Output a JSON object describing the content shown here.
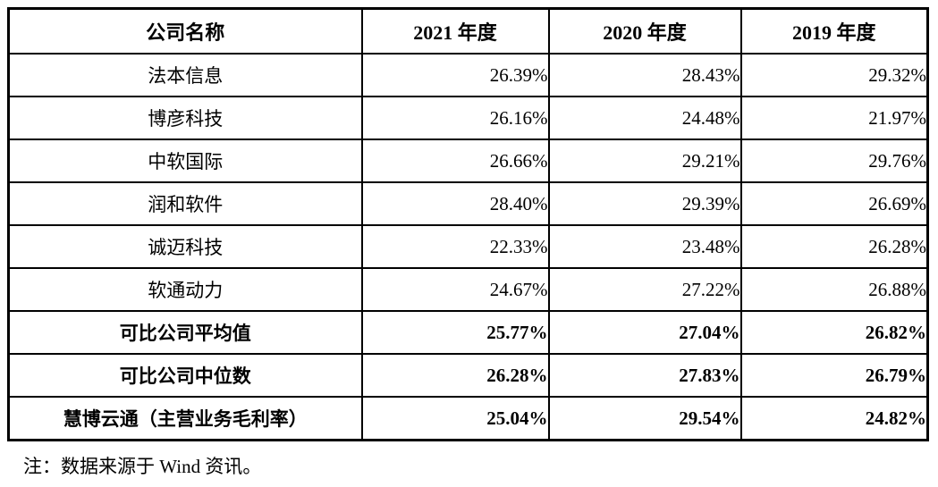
{
  "page": {
    "background_color": "#ffffff",
    "text_color": "#000000",
    "border_color": "#000000"
  },
  "table": {
    "columns": [
      "公司名称",
      "2021 年度",
      "2020 年度",
      "2019 年度"
    ],
    "rows": [
      {
        "name": "法本信息",
        "values": [
          "26.39%",
          "28.43%",
          "29.32%"
        ],
        "bold": false
      },
      {
        "name": "博彦科技",
        "values": [
          "26.16%",
          "24.48%",
          "21.97%"
        ],
        "bold": false
      },
      {
        "name": "中软国际",
        "values": [
          "26.66%",
          "29.21%",
          "29.76%"
        ],
        "bold": false
      },
      {
        "name": "润和软件",
        "values": [
          "28.40%",
          "29.39%",
          "26.69%"
        ],
        "bold": false
      },
      {
        "name": "诚迈科技",
        "values": [
          "22.33%",
          "23.48%",
          "26.28%"
        ],
        "bold": false
      },
      {
        "name": "软通动力",
        "values": [
          "24.67%",
          "27.22%",
          "26.88%"
        ],
        "bold": false
      },
      {
        "name": "可比公司平均值",
        "values": [
          "25.77%",
          "27.04%",
          "26.82%"
        ],
        "bold": true
      },
      {
        "name": "可比公司中位数",
        "values": [
          "26.28%",
          "27.83%",
          "26.79%"
        ],
        "bold": true
      },
      {
        "name": "慧博云通（主营业务毛利率）",
        "values": [
          "25.04%",
          "29.54%",
          "24.82%"
        ],
        "bold": true
      }
    ]
  },
  "note": "注：数据来源于 Wind 资讯。"
}
